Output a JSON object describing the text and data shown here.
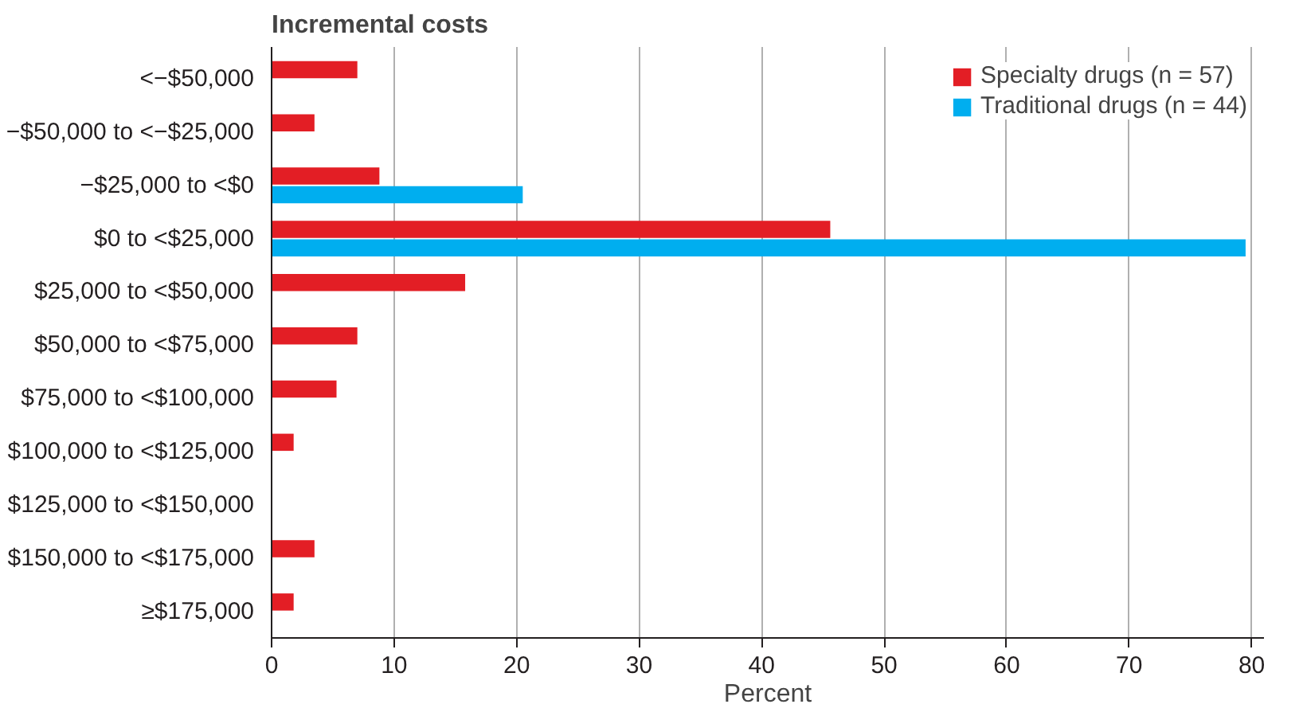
{
  "chart_data": {
    "type": "bar",
    "orientation": "horizontal",
    "ylabel": "Incremental costs",
    "xlabel": "Percent",
    "categories": [
      "<−$50,000",
      "−$50,000 to <−$25,000",
      "−$25,000 to <$0",
      "$0 to <$25,000",
      "$25,000 to <$50,000",
      "$50,000 to <$75,000",
      "$75,000 to <$100,000",
      "$100,000 to <$125,000",
      "$125,000 to <$150,000",
      "$150,000 to <$175,000",
      "≥$175,000"
    ],
    "series": [
      {
        "name": "Specialty drugs (n = 57)",
        "color": "#e31e25",
        "values": [
          7.0,
          3.5,
          8.8,
          45.6,
          15.8,
          7.0,
          5.3,
          1.8,
          0,
          3.5,
          1.8
        ]
      },
      {
        "name": "Traditional drugs (n = 44)",
        "color": "#00aeef",
        "values": [
          0,
          0,
          20.5,
          79.5,
          0,
          0,
          0,
          0,
          0,
          0,
          0
        ]
      }
    ],
    "xlim": [
      0,
      81
    ],
    "xticks": [
      0,
      10,
      20,
      30,
      40,
      50,
      60,
      70,
      80
    ],
    "grid": "x",
    "legend": "top right"
  }
}
